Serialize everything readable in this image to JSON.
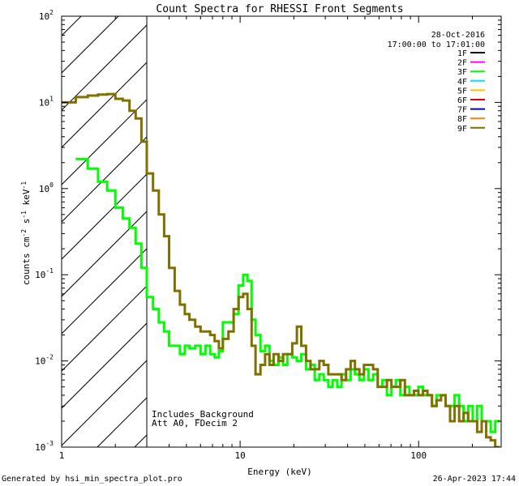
{
  "chart_data": {
    "type": "line",
    "title": "Count Spectra for RHESSI Front Segments",
    "xlabel": "Energy (keV)",
    "ylabel": "counts cm",
    "ylabel_sup1": "-2",
    "ylabel_s": " s",
    "ylabel_sup2": "-1",
    "ylabel_kev": " keV",
    "ylabel_sup3": "-1",
    "xscale": "log",
    "yscale": "log",
    "xlim": [
      1,
      290
    ],
    "ylim": [
      0.001,
      100
    ],
    "x_ticks": [
      {
        "value": 1,
        "label": "1"
      },
      {
        "value": 10,
        "label": "10"
      },
      {
        "value": 100,
        "label": "100"
      }
    ],
    "y_ticks": [
      {
        "value": 100,
        "base": "10",
        "exp": "2"
      },
      {
        "value": 10,
        "base": "10",
        "exp": "1"
      },
      {
        "value": 1,
        "base": "10",
        "exp": "0"
      },
      {
        "value": 0.1,
        "base": "10",
        "exp": "-1"
      },
      {
        "value": 0.01,
        "base": "10",
        "exp": "-2"
      },
      {
        "value": 0.001,
        "base": "10",
        "exp": "-3"
      }
    ],
    "shaded_region": {
      "x_min": 1,
      "x_max": 3
    },
    "date": "28-Oct-2016",
    "time_range": "17:00:00 to 17:01:00",
    "legend": [
      {
        "name": "1F",
        "color": "#000000"
      },
      {
        "name": "2F",
        "color": "#ff00ff"
      },
      {
        "name": "3F",
        "color": "#00ff00"
      },
      {
        "name": "4F",
        "color": "#00e5ff"
      },
      {
        "name": "5F",
        "color": "#ffc000"
      },
      {
        "name": "6F",
        "color": "#e00000"
      },
      {
        "name": "7F",
        "color": "#0000c8"
      },
      {
        "name": "8F",
        "color": "#ff8000"
      },
      {
        "name": "9F",
        "color": "#807000"
      }
    ],
    "series": [
      {
        "name": "3F",
        "color": "#00ff00",
        "edges": [
          1.2,
          1.4,
          1.6,
          1.8,
          2.0,
          2.2,
          2.4,
          2.6,
          2.8,
          3.0,
          3.25,
          3.5,
          3.75,
          4.0,
          4.3,
          4.6,
          4.9,
          5.2,
          5.6,
          6.0,
          6.4,
          6.8,
          7.2,
          7.6,
          8.0,
          8.6,
          9.2,
          9.8,
          10.4,
          11.0,
          11.6,
          12.2,
          13.0,
          13.8,
          14.6,
          15.4,
          16.4,
          17.4,
          18.4,
          19.6,
          20.8,
          22.0,
          23.4,
          24.8,
          26.2,
          27.8,
          29.4,
          31.2,
          33.0,
          35.0,
          37.0,
          39.2,
          41.6,
          44.0,
          46.6,
          49.4,
          52.4,
          55.6,
          59.0,
          62.6,
          66.4,
          70.4,
          74.6,
          79.0,
          83.8,
          88.8,
          94.2,
          99.8,
          105.8,
          112.0,
          118.8,
          126.0,
          133.6,
          141.6,
          150.0,
          159.0,
          168.6,
          178.6,
          189.4,
          200.8,
          212.8,
          225.6,
          239.0,
          253.4,
          268.6,
          285.0
        ],
        "values": [
          2.2,
          1.7,
          1.2,
          0.95,
          0.6,
          0.45,
          0.35,
          0.23,
          0.12,
          0.055,
          0.04,
          0.028,
          0.022,
          0.015,
          0.015,
          0.012,
          0.015,
          0.014,
          0.015,
          0.012,
          0.015,
          0.012,
          0.011,
          0.013,
          0.028,
          0.028,
          0.035,
          0.075,
          0.1,
          0.085,
          0.03,
          0.02,
          0.013,
          0.015,
          0.01,
          0.009,
          0.011,
          0.009,
          0.012,
          0.011,
          0.01,
          0.012,
          0.008,
          0.009,
          0.006,
          0.007,
          0.006,
          0.005,
          0.006,
          0.005,
          0.007,
          0.006,
          0.008,
          0.007,
          0.006,
          0.008,
          0.006,
          0.007,
          0.005,
          0.006,
          0.004,
          0.005,
          0.006,
          0.004,
          0.005,
          0.004,
          0.004,
          0.005,
          0.004,
          0.004,
          0.003,
          0.004,
          0.004,
          0.003,
          0.003,
          0.004,
          0.003,
          0.002,
          0.003,
          0.002,
          0.003,
          0.002,
          0.002,
          0.0015,
          0.002
        ]
      },
      {
        "name": "9F",
        "color": "#807000",
        "edges": [
          1.0,
          1.2,
          1.4,
          1.6,
          1.8,
          2.0,
          2.2,
          2.4,
          2.6,
          2.8,
          3.0,
          3.25,
          3.5,
          3.75,
          4.0,
          4.3,
          4.6,
          4.9,
          5.2,
          5.6,
          6.0,
          6.4,
          6.8,
          7.2,
          7.6,
          8.0,
          8.6,
          9.2,
          9.8,
          10.4,
          11.0,
          11.6,
          12.2,
          13.0,
          13.8,
          14.6,
          15.4,
          16.4,
          17.4,
          18.4,
          19.6,
          20.8,
          22.0,
          23.4,
          24.8,
          26.2,
          27.8,
          29.4,
          31.2,
          33.0,
          35.0,
          37.0,
          39.2,
          41.6,
          44.0,
          46.6,
          49.4,
          52.4,
          55.6,
          59.0,
          62.6,
          66.4,
          70.4,
          74.6,
          79.0,
          83.8,
          88.8,
          94.2,
          99.8,
          105.8,
          112.0,
          118.8,
          126.0,
          133.6,
          141.6,
          150.0,
          159.0,
          168.6,
          178.6,
          189.4,
          200.8,
          212.8,
          225.6,
          239.0,
          253.4,
          268.6,
          285.0
        ],
        "values": [
          10.0,
          11.5,
          12.0,
          12.3,
          12.5,
          11.0,
          10.5,
          8.0,
          6.5,
          3.5,
          1.5,
          0.95,
          0.5,
          0.28,
          0.12,
          0.065,
          0.045,
          0.035,
          0.03,
          0.025,
          0.022,
          0.022,
          0.02,
          0.017,
          0.014,
          0.018,
          0.022,
          0.04,
          0.055,
          0.06,
          0.04,
          0.015,
          0.007,
          0.009,
          0.012,
          0.009,
          0.012,
          0.01,
          0.012,
          0.012,
          0.016,
          0.025,
          0.015,
          0.01,
          0.008,
          0.008,
          0.01,
          0.009,
          0.007,
          0.007,
          0.007,
          0.006,
          0.008,
          0.01,
          0.008,
          0.007,
          0.009,
          0.009,
          0.008,
          0.005,
          0.005,
          0.006,
          0.005,
          0.005,
          0.006,
          0.004,
          0.004,
          0.0045,
          0.004,
          0.0045,
          0.004,
          0.003,
          0.0035,
          0.004,
          0.003,
          0.002,
          0.003,
          0.002,
          0.0025,
          0.002,
          0.002,
          0.0015,
          0.002,
          0.0013,
          0.0012,
          0.001
        ]
      }
    ],
    "annotations": [
      "Includes_Background",
      "Att A0, FDecim 2"
    ]
  },
  "footer": {
    "left": "Generated by hsi_min_spectra_plot.pro",
    "right": "26-Apr-2023 17:44"
  }
}
